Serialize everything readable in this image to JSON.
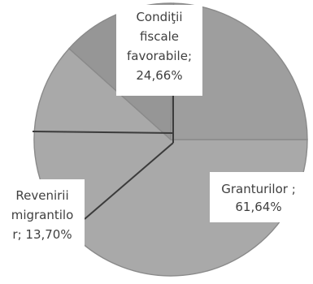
{
  "chart_data": {
    "type": "pie",
    "title": "",
    "slices": [
      {
        "label_lines": [
          "Granturilor ;",
          "61,64%"
        ],
        "value": 61.64,
        "color": "#a9a9a9"
      },
      {
        "label_lines": [
          "Revenirii",
          "migrantilo",
          "r; 13,70%"
        ],
        "value": 13.7,
        "color": "#969696"
      },
      {
        "label_lines": [
          "Condiţii",
          "fiscale",
          "favorabile;",
          "24,66%"
        ],
        "value": 24.66,
        "color": "#9e9e9e"
      }
    ]
  }
}
